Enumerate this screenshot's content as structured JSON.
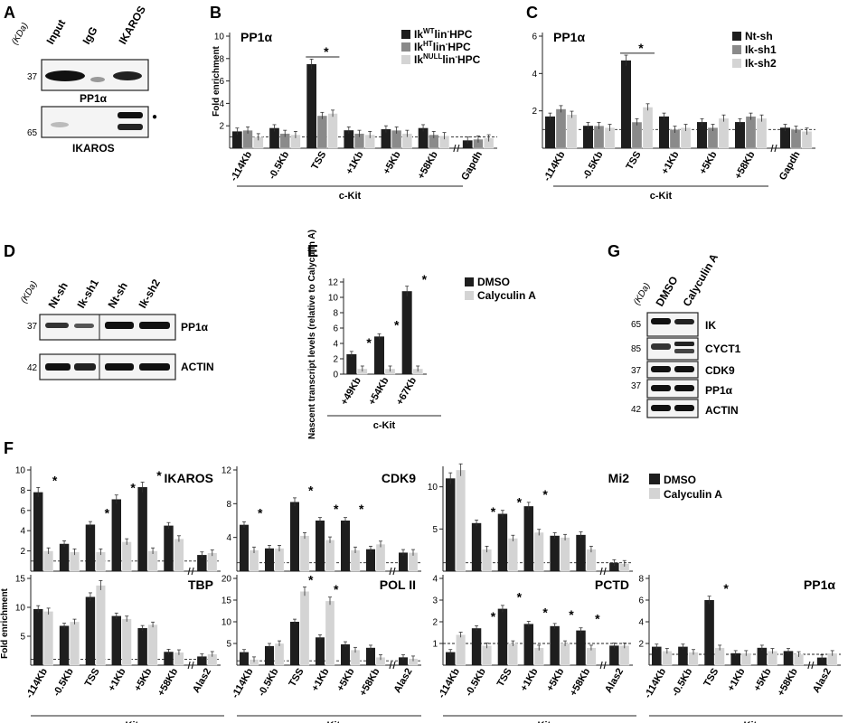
{
  "panel_labels": [
    "A",
    "B",
    "C",
    "D",
    "E",
    "F",
    "G"
  ],
  "blot_A": {
    "kda": "(KDa)",
    "lanes": [
      "Input",
      "IgG",
      "IKAROS"
    ],
    "markers": [
      "37",
      "65"
    ],
    "row_labels": [
      "PP1α",
      "IKAROS"
    ],
    "dot": "●"
  },
  "blot_D": {
    "kda": "(KDa)",
    "lanes": [
      "Nt-sh",
      "Ik-sh1",
      "Nt-sh",
      "Ik-sh2"
    ],
    "markers": [
      "37",
      "42"
    ],
    "row_labels": [
      "PP1α",
      "ACTIN"
    ]
  },
  "blot_G": {
    "kda": "(KDa)",
    "lanes": [
      "DMSO",
      "Calyculin A"
    ],
    "markers": [
      "65",
      "85",
      "37",
      "37",
      "42"
    ],
    "row_labels": [
      "IK",
      "CYCT1",
      "CDK9",
      "PP1α",
      "ACTIN"
    ]
  },
  "shared": {
    "gene": "c-Kit",
    "fold_enrichment": "Fold enrichment",
    "star": "*",
    "legend_F": [
      "DMSO",
      "Calyculin A"
    ]
  },
  "chart_data": [
    {
      "id": "B",
      "type": "bar",
      "title": "PP1α",
      "ylabel": "Fold enrichment",
      "xlabel": "c-Kit",
      "ylim": [
        0,
        10
      ],
      "yticks": [
        2,
        4,
        6,
        8,
        10
      ],
      "categories": [
        "-114Kb",
        "-0.5Kb",
        "TSS",
        "+1Kb",
        "+5Kb",
        "+58Kb",
        "Gapdh"
      ],
      "colors": [
        "#1e1e1e",
        "#8a8a8a",
        "#d4d4d4"
      ],
      "baseline": 1,
      "series": [
        {
          "name": "IkWTlin-HPC",
          "values": [
            1.5,
            1.8,
            7.5,
            1.6,
            1.7,
            1.8,
            0.7
          ]
        },
        {
          "name": "IkHTlin-HPC",
          "values": [
            1.6,
            1.3,
            2.9,
            1.3,
            1.6,
            1.2,
            0.8
          ]
        },
        {
          "name": "IkNULLlin-HPC",
          "values": [
            1.0,
            1.2,
            3.1,
            1.2,
            1.3,
            1.1,
            0.9
          ]
        }
      ],
      "legend_display": [
        {
          "base": "Ik",
          "sup": "WT",
          "rest": "lin",
          "sup2": "-",
          "tail": "HPC"
        },
        {
          "base": "Ik",
          "sup": "HT",
          "rest": "lin",
          "sup2": "-",
          "tail": "HPC"
        },
        {
          "base": "Ik",
          "sup": "NULL",
          "rest": "lin",
          "sup2": "-",
          "tail": "HPC"
        }
      ]
    },
    {
      "id": "C",
      "type": "bar",
      "title": "PP1α",
      "xlabel": "c-Kit",
      "ylim": [
        0,
        6
      ],
      "yticks": [
        2,
        4,
        6
      ],
      "categories": [
        "-114Kb",
        "-0.5Kb",
        "TSS",
        "+1Kb",
        "+5Kb",
        "+58Kb",
        "Gapdh"
      ],
      "colors": [
        "#1e1e1e",
        "#8a8a8a",
        "#d4d4d4"
      ],
      "baseline": 1,
      "series": [
        {
          "name": "Nt-sh",
          "values": [
            1.7,
            1.2,
            4.7,
            1.7,
            1.4,
            1.4,
            1.1
          ]
        },
        {
          "name": "Ik-sh1",
          "values": [
            2.1,
            1.2,
            1.4,
            1.0,
            1.1,
            1.7,
            1.0
          ]
        },
        {
          "name": "Ik-sh2",
          "values": [
            1.8,
            1.1,
            2.2,
            1.1,
            1.6,
            1.6,
            0.9
          ]
        }
      ]
    },
    {
      "id": "E",
      "type": "bar",
      "ylabel": "Nascent transcript levels (relative to Calyculin A)",
      "xlabel": "c-Kit",
      "ylim": [
        0,
        12
      ],
      "yticks": [
        0,
        2,
        4,
        6,
        8,
        10,
        12
      ],
      "categories": [
        "+49Kb",
        "+54Kb",
        "+67Kb"
      ],
      "colors": [
        "#1e1e1e",
        "#d4d4d4"
      ],
      "series": [
        {
          "name": "DMSO",
          "values": [
            2.6,
            4.9,
            10.8
          ]
        },
        {
          "name": "Calyculin A",
          "values": [
            0.7,
            0.7,
            0.7
          ]
        }
      ]
    },
    {
      "id": "F-IKAROS",
      "type": "bar",
      "title": "IKAROS",
      "ylim": [
        0,
        10
      ],
      "yticks": [
        2,
        4,
        6,
        8,
        10
      ],
      "categories": [
        "-114Kb",
        "-0.5Kb",
        "TSS",
        "+1Kb",
        "+5Kb",
        "+58Kb",
        "Alas2"
      ],
      "series": [
        {
          "name": "DMSO",
          "values": [
            7.8,
            2.7,
            4.6,
            7.1,
            8.3,
            4.5,
            1.6
          ]
        },
        {
          "name": "Calyculin A",
          "values": [
            2.0,
            1.9,
            1.9,
            2.9,
            2.0,
            3.2,
            1.8
          ]
        }
      ]
    },
    {
      "id": "F-CDK9",
      "type": "bar",
      "title": "CDK9",
      "ylim": [
        0,
        12
      ],
      "yticks": [
        4,
        8,
        12
      ],
      "categories": [
        "-114Kb",
        "-0.5Kb",
        "TSS",
        "+1Kb",
        "+5Kb",
        "+58Kb",
        "Alas2"
      ],
      "series": [
        {
          "name": "DMSO",
          "values": [
            5.5,
            2.7,
            8.2,
            6.0,
            6.0,
            2.6,
            2.2
          ]
        },
        {
          "name": "Calyculin A",
          "values": [
            2.5,
            2.7,
            4.2,
            3.7,
            2.5,
            3.2,
            2.2
          ]
        }
      ]
    },
    {
      "id": "F-Mi2",
      "type": "bar",
      "title": "Mi2",
      "ylim": [
        0,
        12
      ],
      "yticks": [
        5,
        10
      ],
      "categories": [
        "-114Kb",
        "-0.5Kb",
        "TSS",
        "+1Kb",
        "+5Kb",
        "+58Kb",
        "Alas2"
      ],
      "series": [
        {
          "name": "DMSO",
          "values": [
            11.0,
            5.7,
            6.8,
            7.7,
            4.2,
            4.3,
            1.0
          ]
        },
        {
          "name": "Calyculin A",
          "values": [
            12.0,
            2.6,
            3.9,
            4.6,
            4.0,
            2.6,
            0.9
          ]
        }
      ]
    },
    {
      "id": "F-TBP",
      "type": "bar",
      "title": "TBP",
      "ylim": [
        0,
        15
      ],
      "yticks": [
        5,
        10,
        15
      ],
      "categories": [
        "-114Kb",
        "-0.5Kb",
        "TSS",
        "+1Kb",
        "+5Kb",
        "+58Kb",
        "Alas2"
      ],
      "series": [
        {
          "name": "DMSO",
          "values": [
            9.7,
            6.8,
            11.8,
            8.5,
            6.4,
            2.3,
            1.5
          ]
        },
        {
          "name": "Calyculin A",
          "values": [
            9.3,
            7.5,
            13.8,
            8.0,
            7.0,
            2.2,
            1.9
          ]
        }
      ]
    },
    {
      "id": "F-POLII",
      "type": "bar",
      "title": "POL II",
      "ylim": [
        0,
        20
      ],
      "yticks": [
        5,
        10,
        15,
        20
      ],
      "categories": [
        "-114Kb",
        "-0.5Kb",
        "TSS",
        "+1Kb",
        "+5Kb",
        "+58Kb",
        "Alas2"
      ],
      "series": [
        {
          "name": "DMSO",
          "values": [
            3.0,
            4.4,
            10.0,
            6.4,
            4.8,
            4.0,
            1.8
          ]
        },
        {
          "name": "Calyculin A",
          "values": [
            1.3,
            5.0,
            17.0,
            14.8,
            3.5,
            1.8,
            1.5
          ]
        }
      ]
    },
    {
      "id": "F-PCTD",
      "type": "bar",
      "title": "PCTD",
      "ylim": [
        0,
        4
      ],
      "yticks": [
        1,
        2,
        3,
        4
      ],
      "categories": [
        "-114Kb",
        "-0.5Kb",
        "TSS",
        "+1Kb",
        "+5Kb",
        "+58Kb",
        "Alas2"
      ],
      "series": [
        {
          "name": "DMSO",
          "values": [
            0.6,
            1.7,
            2.6,
            1.9,
            1.8,
            1.6,
            0.9
          ]
        },
        {
          "name": "Calyculin A",
          "values": [
            1.4,
            0.9,
            1.0,
            0.8,
            1.0,
            0.8,
            0.9
          ]
        }
      ]
    },
    {
      "id": "F-PP1a",
      "type": "bar",
      "title": "PP1α",
      "ylim": [
        0,
        8
      ],
      "yticks": [
        2,
        4,
        6,
        8
      ],
      "categories": [
        "-114Kb",
        "-0.5Kb",
        "TSS",
        "+1Kb",
        "+5Kb",
        "+58Kb",
        "Alas2"
      ],
      "series": [
        {
          "name": "DMSO",
          "values": [
            1.7,
            1.7,
            6.0,
            1.1,
            1.6,
            1.3,
            0.7
          ]
        },
        {
          "name": "Calyculin A",
          "values": [
            1.3,
            1.2,
            1.6,
            1.1,
            1.3,
            1.0,
            1.1
          ]
        }
      ]
    }
  ]
}
